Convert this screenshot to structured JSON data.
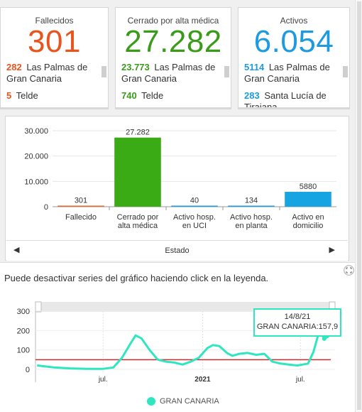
{
  "colors": {
    "deaths": "#e8541c",
    "closed": "#3a9b1b",
    "active": "#1e9be0",
    "bar_deaths": "#e0692b",
    "bar_closed": "#3aab14",
    "bar_icu": "#1c9be0",
    "bar_plant": "#1c9be0",
    "bar_home": "#16a4e2",
    "line": "#2ee6c0",
    "threshold": "#d42a2a"
  },
  "cards": [
    {
      "title": "Fallecidos",
      "value": "301",
      "items": [
        {
          "num": "282",
          "label": "Las Palmas de Gran Canaria"
        },
        {
          "num": "5",
          "label": "Telde"
        }
      ]
    },
    {
      "title": "Cerrado por alta médica",
      "value": "27.282",
      "items": [
        {
          "num": "23.773",
          "label": "Las Palmas de Gran Canaria"
        },
        {
          "num": "740",
          "label": "Telde"
        }
      ]
    },
    {
      "title": "Activos",
      "value": "6.054",
      "items": [
        {
          "num": "5114",
          "label": "Las Palmas de Gran Canaria"
        },
        {
          "num": "283",
          "label": "Santa Lucía de Tirajana"
        }
      ]
    }
  ],
  "bar_panel": {
    "axis_label": "Estado",
    "prev_icon": "arrow-left-icon",
    "next_icon": "arrow-right-icon"
  },
  "line_panel": {
    "hint": "Puede desactivar series del gráfico haciendo click en la leyenda.",
    "tooltip_date": "14/8/21",
    "tooltip_value": "GRAN CANARIA:157,9",
    "legend_label": "GRAN CANARIA",
    "expand_icon": "expand-icon"
  },
  "chart_data": [
    {
      "type": "bar",
      "categories": [
        "Fallecido",
        "Cerrado por alta médica",
        "Activo hosp. en UCI",
        "Activo hosp. en planta",
        "Activo en domicilio"
      ],
      "category_lines": [
        [
          "Fallecido"
        ],
        [
          "Cerrado por",
          "alta médica"
        ],
        [
          "Activo hosp.",
          "en UCI"
        ],
        [
          "Activo hosp.",
          "en planta"
        ],
        [
          "Activo en",
          "domicilio"
        ]
      ],
      "values": [
        301,
        27282,
        40,
        134,
        5880
      ],
      "data_labels": [
        "301",
        "27.282",
        "40",
        "134",
        "5880"
      ],
      "ylim": [
        0,
        30000
      ],
      "yticks": [
        0,
        10000,
        20000,
        30000
      ],
      "ytick_labels": [
        "0",
        "10.000",
        "20.000",
        "30.000"
      ],
      "xlabel": "Estado",
      "grid": true
    },
    {
      "type": "line",
      "series": [
        {
          "name": "GRAN CANARIA",
          "x": [
            "2020-03-01",
            "2020-04-01",
            "2020-05-01",
            "2020-06-01",
            "2020-07-01",
            "2020-07-20",
            "2020-08-05",
            "2020-08-20",
            "2020-08-30",
            "2020-09-10",
            "2020-09-25",
            "2020-10-10",
            "2020-10-25",
            "2020-11-10",
            "2020-11-25",
            "2020-12-10",
            "2020-12-25",
            "2021-01-10",
            "2021-01-20",
            "2021-02-01",
            "2021-02-15",
            "2021-02-25",
            "2021-03-10",
            "2021-03-25",
            "2021-04-10",
            "2021-04-25",
            "2021-05-10",
            "2021-05-25",
            "2021-06-10",
            "2021-06-25",
            "2021-07-05",
            "2021-07-15",
            "2021-07-25",
            "2021-08-05",
            "2021-08-14",
            "2021-08-22"
          ],
          "values": [
            20,
            10,
            5,
            3,
            3,
            10,
            60,
            130,
            175,
            160,
            100,
            50,
            40,
            35,
            25,
            40,
            60,
            110,
            125,
            120,
            85,
            70,
            80,
            85,
            75,
            80,
            40,
            30,
            25,
            20,
            25,
            30,
            90,
            200,
            157.9,
            170
          ]
        }
      ],
      "threshold": 50,
      "ylim": [
        0,
        300
      ],
      "yticks": [
        0,
        100,
        200,
        300
      ],
      "xtick_labels": [
        "jul.",
        "2021",
        "jul."
      ],
      "xtick_dates": [
        "2020-07-01",
        "2021-01-01",
        "2021-07-01"
      ],
      "grid": true,
      "tooltip_point": {
        "x": "2021-08-14",
        "y": 157.9
      }
    }
  ]
}
